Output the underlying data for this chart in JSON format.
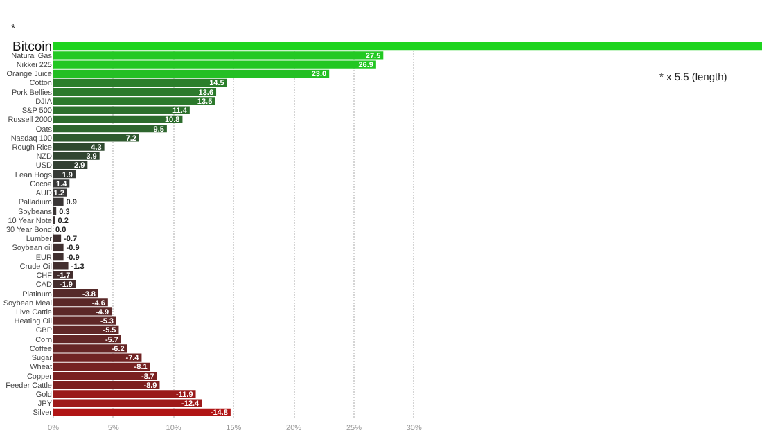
{
  "chart_data": {
    "type": "bar",
    "orientation": "horizontal",
    "categories": [
      "Bitcoin",
      "Natural Gas",
      "Nikkei 225",
      "Orange Juice",
      "Cotton",
      "Pork Bellies",
      "DJIA",
      "S&P 500",
      "Russell 2000",
      "Oats",
      "Nasdaq 100",
      "Rough Rice",
      "NZD",
      "USD",
      "Lean Hogs",
      "Cocoa",
      "AUD",
      "Palladium",
      "Soybeans",
      "10 Year Note",
      "30 Year Bond",
      "Lumber",
      "Soybean oil",
      "EUR",
      "Crude Oil",
      "CHF",
      "CAD",
      "Platinum",
      "Soybean Meal",
      "Live Cattle",
      "Heating Oil",
      "GBP",
      "Corn",
      "Coffee",
      "Sugar",
      "Wheat",
      "Copper",
      "Feeder Cattle",
      "Gold",
      "JPY",
      "Silver"
    ],
    "values": [
      59,
      27.5,
      26.9,
      23.0,
      14.5,
      13.6,
      13.5,
      11.4,
      10.8,
      9.5,
      7.2,
      4.3,
      3.9,
      2.9,
      1.9,
      1.4,
      1.2,
      0.9,
      0.3,
      0.2,
      0.0,
      0.7,
      0.9,
      0.9,
      1.3,
      1.7,
      1.9,
      3.8,
      4.6,
      4.9,
      5.3,
      5.5,
      5.7,
      6.2,
      7.4,
      8.1,
      8.7,
      8.9,
      11.9,
      12.4,
      14.8
    ],
    "value_labels": [
      null,
      "27.5",
      "26.9",
      "23.0",
      "14.5",
      "13.6",
      "13.5",
      "11.4",
      "10.8",
      "9.5",
      "7.2",
      "4.3",
      "3.9",
      "2.9",
      "1.9",
      "1.4",
      "1.2",
      "0.9",
      "0.3",
      "0.2",
      "0.0",
      null,
      null,
      null,
      null,
      null,
      null,
      null,
      null,
      null,
      null,
      null,
      null,
      null,
      null,
      null,
      null,
      null,
      null,
      null,
      null
    ],
    "colors": [
      "#1ed41e",
      "#22c922",
      "#22c722",
      "#24bf24",
      "#2b7f2b",
      "#2c7a2c",
      "#2c792c",
      "#2d702d",
      "#2d6c2d",
      "#2e662e",
      "#2f5a2f",
      "#304a30",
      "#314631",
      "#334033",
      "#363a36",
      "#383838",
      "#393737",
      "#3a3636",
      "#3b3535",
      "#3c3434",
      "#3d3333",
      "#3f3030",
      "#403030",
      "#403030",
      "#422e2e",
      "#432d2d",
      "#442c2c",
      "#552a2a",
      "#5a2828",
      "#5c2828",
      "#5f2727",
      "#602727",
      "#622626",
      "#662525",
      "#702323",
      "#762222",
      "#7a2121",
      "#7c2020",
      "#9a1a1a",
      "#9e1919",
      "#b01515"
    ],
    "xlim": [
      0,
      59
    ],
    "xticks": [
      {
        "value": 0,
        "label": "0%"
      },
      {
        "value": 5,
        "label": "5%"
      },
      {
        "value": 10,
        "label": "10%"
      },
      {
        "value": 15,
        "label": "15%"
      },
      {
        "value": 20,
        "label": "20%"
      },
      {
        "value": 25,
        "label": "25%"
      },
      {
        "value": 30,
        "label": "30%"
      }
    ],
    "grid": "x",
    "annotations": [
      "*",
      "* x 5.5 (length)",
      {
        "text": "-0.7",
        "x": 0.7,
        "y": "Lumber"
      },
      {
        "text": "-0.9",
        "x": 0.9,
        "y": "Soybean oil"
      },
      {
        "text": "-0.9",
        "x": 0.9,
        "y": "EUR"
      },
      {
        "text": "-1.3",
        "x": 1.3,
        "y": "Crude Oil"
      },
      {
        "text": "-1.7",
        "x": 1.7,
        "y": "CHF"
      },
      {
        "text": "-1.9",
        "x": 1.9,
        "y": "CAD"
      },
      {
        "text": "-3.8",
        "x": 3.8,
        "y": "Platinum"
      },
      {
        "text": "-4.6",
        "x": 4.6,
        "y": "Soybean Meal"
      },
      {
        "text": "-4.9",
        "x": 4.9,
        "y": "Live Cattle"
      },
      {
        "text": "-5.3",
        "x": 5.3,
        "y": "Heating Oil"
      },
      {
        "text": "-5.5",
        "x": 5.5,
        "y": "GBP"
      },
      {
        "text": "-5.7",
        "x": 5.7,
        "y": "Corn"
      },
      {
        "text": "-6.2",
        "x": 6.2,
        "y": "Coffee"
      },
      {
        "text": "-7.4",
        "x": 7.4,
        "y": "Sugar"
      },
      {
        "text": "-8.1",
        "x": 8.1,
        "y": "Wheat"
      },
      {
        "text": "-8.7",
        "x": 8.7,
        "y": "Copper"
      },
      {
        "text": "-8.9",
        "x": 8.9,
        "y": "Feeder Cattle"
      },
      {
        "text": "-11.9",
        "x": 11.9,
        "y": "Gold"
      },
      {
        "text": "-12.4",
        "x": 12.4,
        "y": "JPY"
      },
      {
        "text": "-14.8",
        "x": 14.8,
        "y": "Silver"
      }
    ]
  }
}
